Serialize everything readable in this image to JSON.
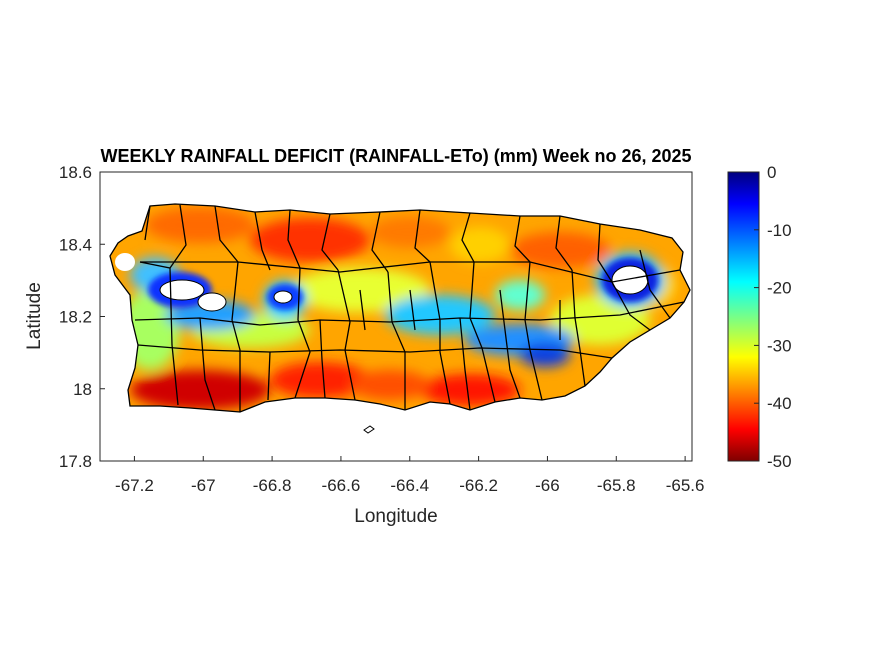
{
  "title": "WEEKLY RAINFALL DEFICIT (RAINFALL-ETo) (mm) Week no 26, 2025",
  "map": {
    "xlabel": "Longitude",
    "ylabel": "Latitude",
    "xlim": [
      -67.3,
      -65.58
    ],
    "ylim": [
      17.8,
      18.6
    ],
    "x_ticks": [
      -67.2,
      -67,
      -66.8,
      -66.6,
      -66.4,
      -66.2,
      -66,
      -65.8,
      -65.6
    ],
    "x_tick_labels": [
      "-67.2",
      "-67",
      "-66.8",
      "-66.6",
      "-66.4",
      "-66.2",
      "-66",
      "-65.8",
      "-65.6"
    ],
    "y_ticks": [
      17.8,
      18,
      18.2,
      18.4,
      18.6
    ],
    "y_tick_labels": [
      "17.8",
      "18",
      "18.2",
      "18.4",
      "18.6"
    ]
  },
  "colorbar": {
    "colormap": "jet",
    "range": [
      -50,
      0
    ],
    "ticks": [
      0,
      -10,
      -20,
      -30,
      -40,
      -50
    ],
    "tick_labels": [
      "0",
      "-10",
      "-20",
      "-30",
      "-40",
      "-50"
    ]
  }
}
